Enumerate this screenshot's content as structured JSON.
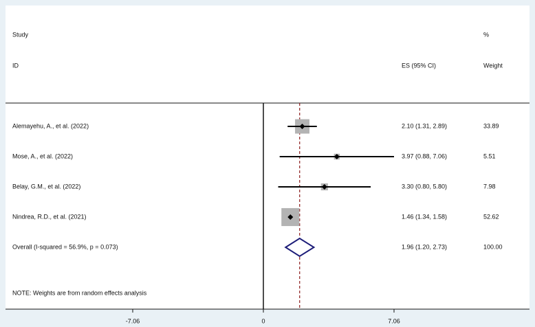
{
  "chart_data": {
    "type": "forest",
    "header": {
      "study": "Study",
      "id": "ID",
      "pct": "%",
      "es": "ES (95% CI)",
      "weight": "Weight"
    },
    "studies": [
      "Alemayehu, A., et al. (2022)",
      "Mose, A., et al. (2022)",
      "Belay, G.M., et al. (2022)",
      "Nindrea, R.D., et al. (2021)"
    ],
    "es": [
      2.1,
      3.97,
      3.3,
      1.46
    ],
    "ci_lower": [
      1.31,
      0.88,
      0.8,
      1.34
    ],
    "ci_upper": [
      2.89,
      7.06,
      5.8,
      1.58
    ],
    "value_labels": [
      "2.10 (1.31, 2.89)",
      "3.97 (0.88, 7.06)",
      "3.30 (0.80, 5.80)",
      "1.46 (1.34, 1.58)"
    ],
    "weights": [
      33.89,
      5.51,
      7.98,
      52.62
    ],
    "overall": {
      "label": "Overall  (I-squared = 56.9%, p = 0.073)",
      "es": 1.96,
      "ci_lower": 1.2,
      "ci_upper": 2.73,
      "value_label": "1.96 (1.20, 2.73)",
      "weight": 100,
      "weight_label": "100.00"
    },
    "note": "NOTE: Weights are from random effects analysis",
    "xlim": [
      -7.06,
      7.06
    ],
    "xticks": [
      -7.06,
      0,
      7.06
    ],
    "box_color": "#b3b3b3",
    "diamond_color": "#1c1c78",
    "ref_line_color": "#8b1a1a"
  }
}
